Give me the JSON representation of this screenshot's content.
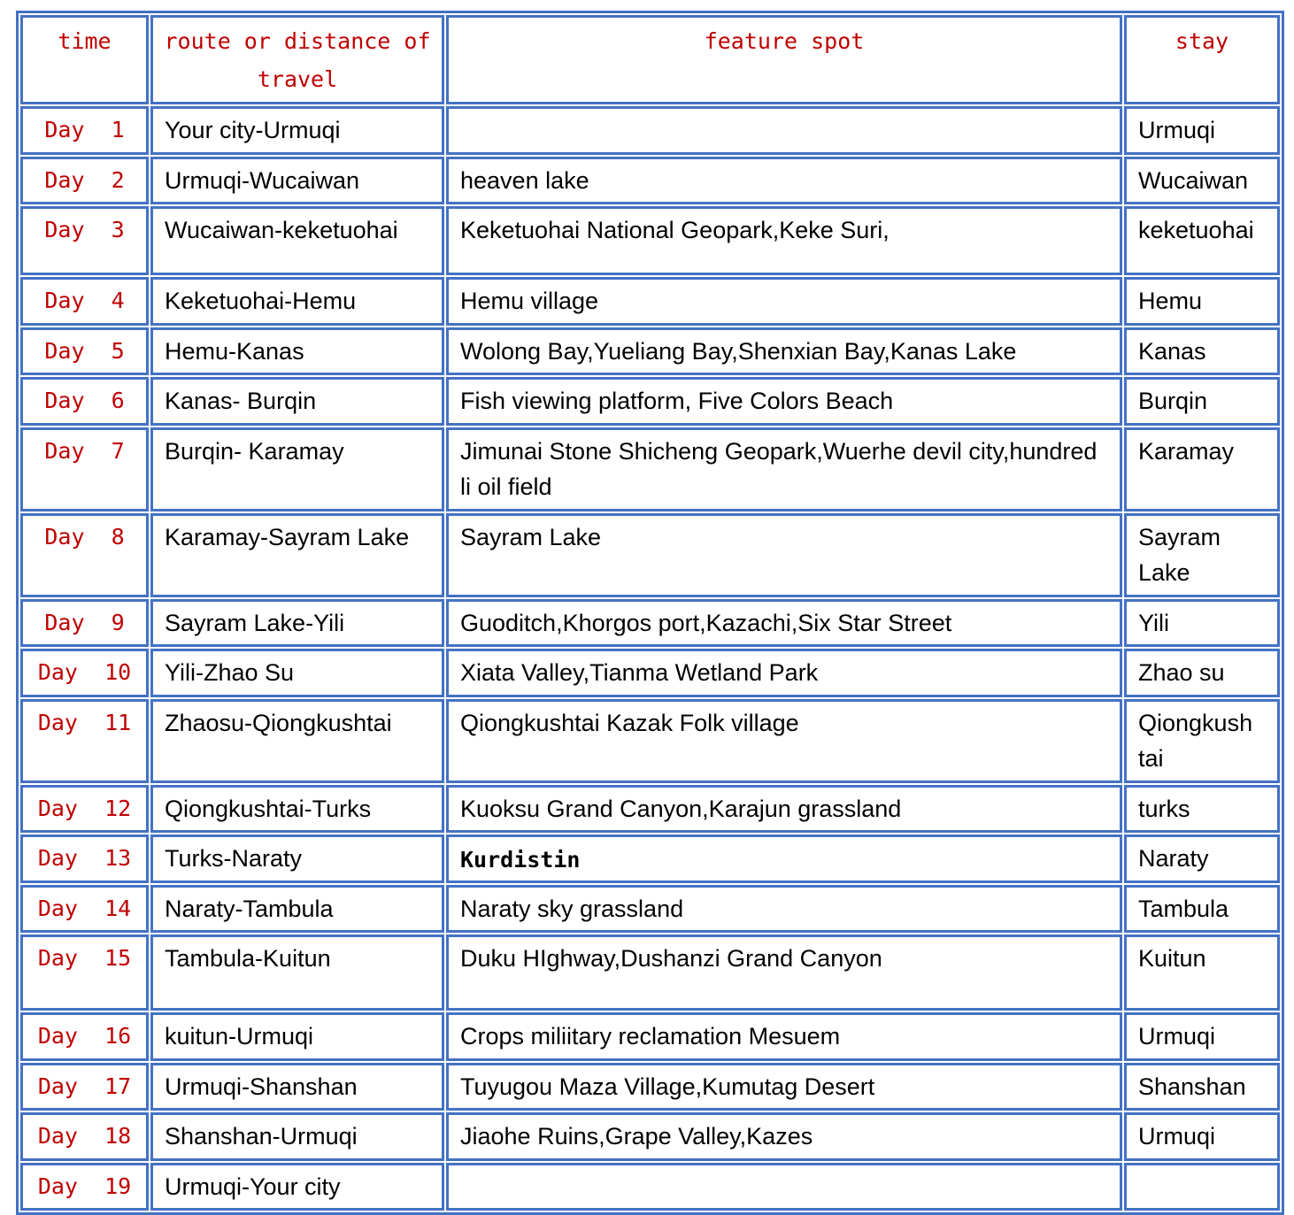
{
  "colors": {
    "border_blue": "#4472C4",
    "header_red": "#C00000",
    "body_text": "#000000"
  },
  "itinerary": {
    "headers": {
      "time": "time",
      "route": "route or distance of travel",
      "feature": "feature spot",
      "stay": "stay"
    },
    "rows": [
      {
        "day": "Day  1",
        "route": "Your city-Urmuqi",
        "feature": "",
        "stay": "Urmuqi"
      },
      {
        "day": "Day  2",
        "route": "Urmuqi-Wucaiwan",
        "feature": "heaven lake",
        "stay": "Wucaiwan"
      },
      {
        "day": "Day  3",
        "route": "Wucaiwan-keketuohai",
        "feature": "Keketuohai National Geopark,Keke Suri,",
        "stay": "keketuohai"
      },
      {
        "day": "Day  4",
        "route": "Keketuohai-Hemu",
        "feature": "Hemu village",
        "stay": "Hemu"
      },
      {
        "day": "Day  5",
        "route": "Hemu-Kanas",
        "feature": "Wolong Bay,Yueliang Bay,Shenxian Bay,Kanas Lake",
        "stay": "Kanas"
      },
      {
        "day": "Day  6",
        "route": "Kanas- Burqin",
        "feature": "Fish viewing platform, Five Colors Beach",
        "stay": "Burqin"
      },
      {
        "day": "Day  7",
        "route": "Burqin- Karamay",
        "feature": "Jimunai Stone Shicheng Geopark,Wuerhe devil city,hundred li oil field",
        "stay": "Karamay"
      },
      {
        "day": "Day  8",
        "route": "Karamay-Sayram Lake",
        "feature": "Sayram Lake",
        "stay": "Sayram Lake"
      },
      {
        "day": "Day  9",
        "route": "Sayram Lake-Yili",
        "feature": "Guoditch,Khorgos port,Kazachi,Six Star Street",
        "stay": "Yili"
      },
      {
        "day": "Day  10",
        "route": "Yili-Zhao Su",
        "feature": "Xiata Valley,Tianma Wetland Park",
        "stay": "Zhao su"
      },
      {
        "day": "Day  11",
        "route": "Zhaosu-Qiongkushtai",
        "feature": "Qiongkushtai Kazak Folk village",
        "stay": "Qiongkushtai"
      },
      {
        "day": "Day  12",
        "route": "Qiongkushtai-Turks",
        "feature": "Kuoksu Grand Canyon,Karajun grassland",
        "stay": "turks"
      },
      {
        "day": "Day  13",
        "route": "Turks-Naraty",
        "feature": "Kurdistin",
        "stay": "Naraty"
      },
      {
        "day": "Day  14",
        "route": "Naraty-Tambula",
        "feature": "Naraty sky grassland",
        "stay": "Tambula"
      },
      {
        "day": "Day  15",
        "route": "Tambula-Kuitun",
        "feature": "Duku HIghway,Dushanzi Grand Canyon",
        "stay": "Kuitun"
      },
      {
        "day": "Day  16",
        "route": "kuitun-Urmuqi",
        "feature": "Crops miliitary reclamation Mesuem",
        "stay": "Urmuqi"
      },
      {
        "day": "Day  17",
        "route": "Urmuqi-Shanshan",
        "feature": "Tuyugou Maza Village,Kumutag Desert",
        "stay": "Shanshan"
      },
      {
        "day": "Day  18",
        "route": "Shanshan-Urmuqi",
        "feature": "Jiaohe Ruins,Grape Valley,Kazes",
        "stay": "Urmuqi"
      },
      {
        "day": "Day  19",
        "route": "Urmuqi-Your city",
        "feature": "",
        "stay": ""
      }
    ]
  }
}
